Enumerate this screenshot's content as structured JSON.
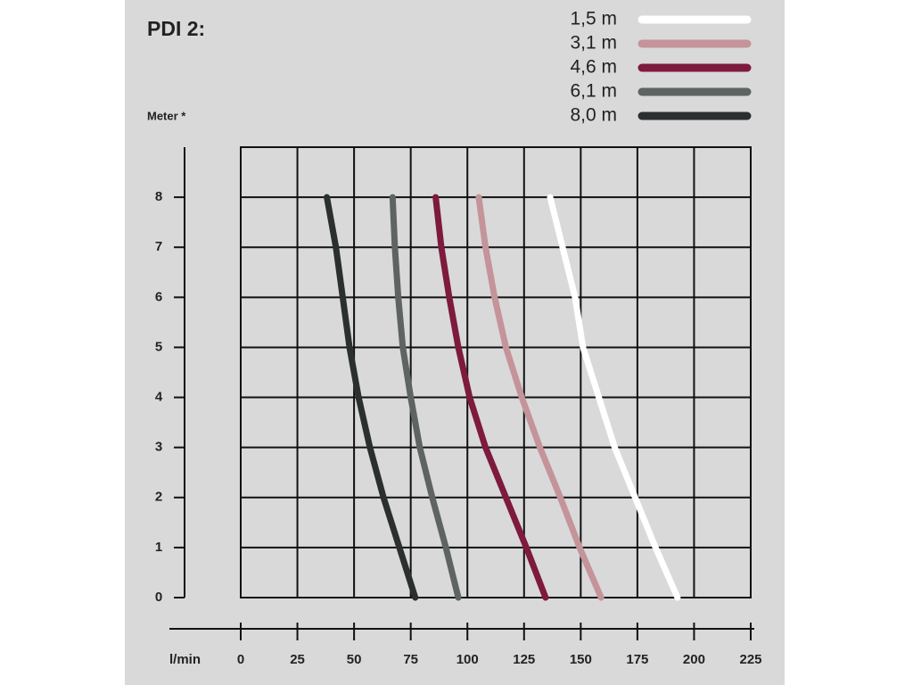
{
  "chart_data": {
    "type": "line",
    "title": "PDI 2:",
    "y_label": "Meter *",
    "x_label": "l/min",
    "xlim": [
      0,
      225
    ],
    "xticks": [
      0,
      25,
      50,
      75,
      100,
      125,
      150,
      175,
      200,
      225
    ],
    "ylim": [
      0,
      9
    ],
    "yticks": [
      0,
      1,
      2,
      3,
      4,
      5,
      6,
      7,
      8
    ],
    "grid": true,
    "series": [
      {
        "name": "1,5 m",
        "color": "#ffffff",
        "x": [
          192.7,
          183,
          174,
          165,
          158,
          151,
          147.5,
          142,
          136.5
        ],
        "values": [
          0,
          1,
          2,
          3,
          4,
          5,
          6,
          7,
          8
        ]
      },
      {
        "name": "3,1 m",
        "color": "#c4949a",
        "x": [
          159,
          149.5,
          141,
          132,
          124,
          117,
          112,
          108,
          105
        ],
        "values": [
          0,
          1,
          2,
          3,
          4,
          5,
          6,
          7,
          8
        ]
      },
      {
        "name": "4,6 m",
        "color": "#7d1a3e",
        "x": [
          134.5,
          126,
          117,
          108,
          101,
          96,
          92,
          88.5,
          86
        ],
        "values": [
          0,
          1,
          2,
          3,
          4,
          5,
          6,
          7,
          8
        ]
      },
      {
        "name": "6,1 m",
        "color": "#5d6461",
        "x": [
          96,
          90.5,
          84.5,
          79,
          75,
          71.5,
          69.5,
          68,
          67
        ],
        "values": [
          0,
          1,
          2,
          3,
          4,
          5,
          6,
          7,
          8
        ]
      },
      {
        "name": "8,0 m",
        "color": "#2b2f2f",
        "x": [
          77,
          70,
          63,
          57,
          52,
          48,
          45,
          42,
          38
        ],
        "values": [
          0,
          1,
          2,
          3,
          4,
          5,
          6,
          7,
          8
        ]
      }
    ]
  }
}
